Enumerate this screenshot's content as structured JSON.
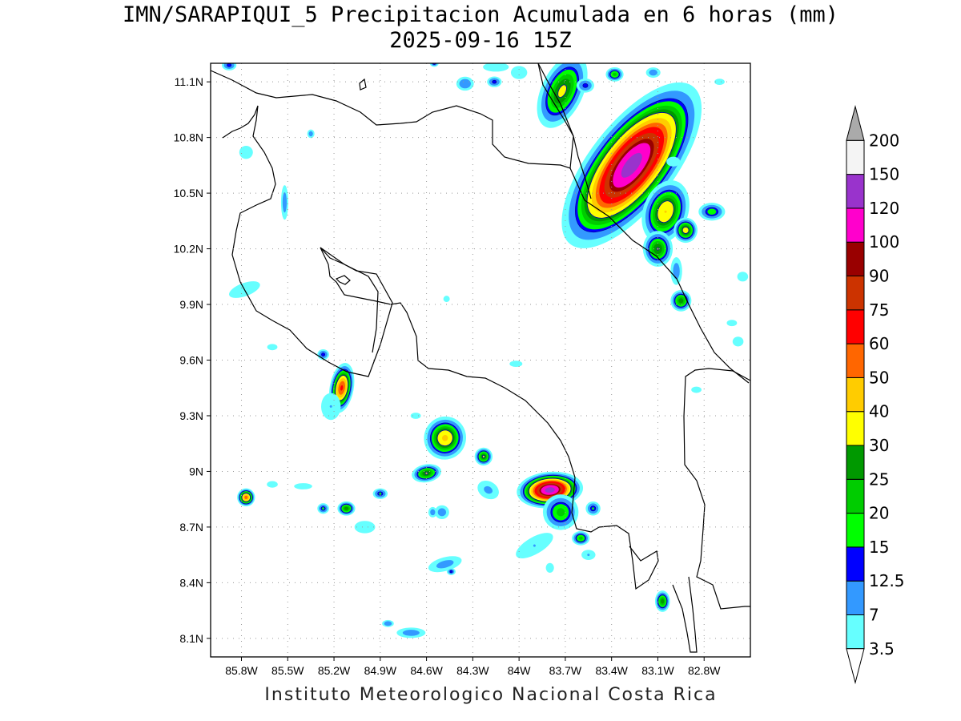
{
  "title": "IMN/SARAPIQUI_5 Precipitacion Acumulada en 6 horas (mm)",
  "subtitle": "2025-09-16 15Z",
  "credit": "Instituto Meteorologico Nacional Costa Rica",
  "chart_data": {
    "type": "heatmap",
    "title": "IMN/SARAPIQUI_5 Precipitacion Acumulada en 6 horas (mm)",
    "subtitle": "2025-09-16 15Z",
    "xlabel": "",
    "ylabel": "",
    "xlim": [
      -86.0,
      -82.5
    ],
    "ylim": [
      8.0,
      11.2
    ],
    "x_ticks": [
      -85.8,
      -85.5,
      -85.2,
      -84.9,
      -84.6,
      -84.3,
      -84.0,
      -83.7,
      -83.4,
      -83.1,
      -82.8
    ],
    "x_tick_labels": [
      "85.8W",
      "85.5W",
      "85.2W",
      "84.9W",
      "84.6W",
      "84.3W",
      "84W",
      "83.7W",
      "83.4W",
      "83.1W",
      "82.8W"
    ],
    "y_ticks": [
      8.1,
      8.4,
      8.7,
      9.0,
      9.3,
      9.6,
      9.9,
      10.2,
      10.5,
      10.8,
      11.1
    ],
    "y_tick_labels": [
      "8.1N",
      "8.4N",
      "8.7N",
      "9N",
      "9.3N",
      "9.6N",
      "9.9N",
      "10.2N",
      "10.5N",
      "10.8N",
      "11.1N"
    ],
    "grid": true,
    "colorbar": {
      "levels": [
        "3.5",
        "7",
        "12.5",
        "15",
        "20",
        "25",
        "30",
        "40",
        "50",
        "60",
        "75",
        "90",
        "100",
        "120",
        "150",
        "200"
      ],
      "colors": [
        "#66ffff",
        "#3399ff",
        "#0000ff",
        "#00ff00",
        "#00cc00",
        "#009900",
        "#ffff00",
        "#ffcc00",
        "#ff6600",
        "#ff0000",
        "#cc3300",
        "#990000",
        "#ff00cc",
        "#9933cc",
        "#f4f4f4",
        "#aaaaaa"
      ],
      "extend": "both"
    },
    "rain_cells": [
      {
        "lon": -83.27,
        "lat": 10.65,
        "sx": 0.28,
        "sy": 0.55,
        "rot": 38,
        "peak": 130
      },
      {
        "lon": -83.72,
        "lat": 11.05,
        "sx": 0.14,
        "sy": 0.22,
        "rot": 25,
        "peak": 32
      },
      {
        "lon": -83.05,
        "lat": 10.4,
        "sx": 0.15,
        "sy": 0.18,
        "rot": 20,
        "peak": 40
      },
      {
        "lon": -83.1,
        "lat": 10.2,
        "sx": 0.1,
        "sy": 0.1,
        "rot": 0,
        "peak": 30
      },
      {
        "lon": -82.92,
        "lat": 10.3,
        "sx": 0.08,
        "sy": 0.07,
        "rot": 0,
        "peak": 35
      },
      {
        "lon": -82.75,
        "lat": 10.4,
        "sx": 0.09,
        "sy": 0.05,
        "rot": 0,
        "peak": 18
      },
      {
        "lon": -82.95,
        "lat": 9.92,
        "sx": 0.07,
        "sy": 0.06,
        "rot": 0,
        "peak": 28
      },
      {
        "lon": -83.8,
        "lat": 8.9,
        "sx": 0.22,
        "sy": 0.1,
        "rot": -5,
        "peak": 130
      },
      {
        "lon": -83.73,
        "lat": 8.78,
        "sx": 0.12,
        "sy": 0.1,
        "rot": 0,
        "peak": 22
      },
      {
        "lon": -83.52,
        "lat": 8.8,
        "sx": 0.05,
        "sy": 0.04,
        "rot": 0,
        "peak": 15
      },
      {
        "lon": -83.6,
        "lat": 8.64,
        "sx": 0.06,
        "sy": 0.04,
        "rot": 0,
        "peak": 22
      },
      {
        "lon": -84.48,
        "lat": 9.18,
        "sx": 0.14,
        "sy": 0.12,
        "rot": 20,
        "peak": 42
      },
      {
        "lon": -84.6,
        "lat": 8.99,
        "sx": 0.1,
        "sy": 0.05,
        "rot": -10,
        "peak": 30
      },
      {
        "lon": -85.15,
        "lat": 9.45,
        "sx": 0.08,
        "sy": 0.14,
        "rot": 10,
        "peak": 62
      },
      {
        "lon": -85.27,
        "lat": 9.63,
        "sx": 0.04,
        "sy": 0.03,
        "rot": 0,
        "peak": 14
      },
      {
        "lon": -85.77,
        "lat": 8.86,
        "sx": 0.06,
        "sy": 0.05,
        "rot": 0,
        "peak": 55
      },
      {
        "lon": -85.12,
        "lat": 8.8,
        "sx": 0.06,
        "sy": 0.04,
        "rot": 0,
        "peak": 28
      },
      {
        "lon": -85.27,
        "lat": 8.8,
        "sx": 0.04,
        "sy": 0.03,
        "rot": 0,
        "peak": 15
      },
      {
        "lon": -83.07,
        "lat": 8.3,
        "sx": 0.05,
        "sy": 0.06,
        "rot": 0,
        "peak": 28
      },
      {
        "lon": -84.9,
        "lat": 8.88,
        "sx": 0.05,
        "sy": 0.03,
        "rot": 0,
        "peak": 15
      },
      {
        "lon": -84.23,
        "lat": 9.08,
        "sx": 0.06,
        "sy": 0.05,
        "rot": 0,
        "peak": 30
      },
      {
        "lon": -84.5,
        "lat": 8.78,
        "sx": 0.05,
        "sy": 0.04,
        "rot": 0,
        "peak": 10
      },
      {
        "lon": -84.48,
        "lat": 8.5,
        "sx": 0.12,
        "sy": 0.04,
        "rot": -15,
        "peak": 9
      },
      {
        "lon": -84.7,
        "lat": 8.13,
        "sx": 0.1,
        "sy": 0.03,
        "rot": 0,
        "peak": 10
      },
      {
        "lon": -85.77,
        "lat": 10.72,
        "sx": 0.05,
        "sy": 0.04,
        "rot": 0,
        "peak": 6
      },
      {
        "lon": -85.52,
        "lat": 10.45,
        "sx": 0.025,
        "sy": 0.1,
        "rot": 0,
        "peak": 10
      },
      {
        "lon": -85.35,
        "lat": 10.82,
        "sx": 0.025,
        "sy": 0.025,
        "rot": 0,
        "peak": 10
      },
      {
        "lon": -84.35,
        "lat": 11.09,
        "sx": 0.06,
        "sy": 0.04,
        "rot": 0,
        "peak": 12
      },
      {
        "lon": -84.15,
        "lat": 11.18,
        "sx": 0.1,
        "sy": 0.03,
        "rot": 0,
        "peak": 5
      },
      {
        "lon": -84.16,
        "lat": 11.1,
        "sx": 0.05,
        "sy": 0.03,
        "rot": 0,
        "peak": 14
      },
      {
        "lon": -85.88,
        "lat": 11.19,
        "sx": 0.05,
        "sy": 0.03,
        "rot": 0,
        "peak": 14
      },
      {
        "lon": -84.55,
        "lat": 11.2,
        "sx": 0.03,
        "sy": 0.02,
        "rot": 0,
        "peak": 14
      },
      {
        "lon": -85.78,
        "lat": 9.98,
        "sx": 0.12,
        "sy": 0.04,
        "rot": -20,
        "peak": 6
      },
      {
        "lon": -85.6,
        "lat": 9.67,
        "sx": 0.04,
        "sy": 0.02,
        "rot": 0,
        "peak": 5
      },
      {
        "lon": -85.4,
        "lat": 8.92,
        "sx": 0.07,
        "sy": 0.02,
        "rot": 0,
        "peak": 5
      },
      {
        "lon": -85.0,
        "lat": 8.7,
        "sx": 0.08,
        "sy": 0.04,
        "rot": 0,
        "peak": 5
      },
      {
        "lon": -84.2,
        "lat": 8.9,
        "sx": 0.08,
        "sy": 0.05,
        "rot": 30,
        "peak": 8
      },
      {
        "lon": -83.9,
        "lat": 8.6,
        "sx": 0.15,
        "sy": 0.05,
        "rot": -30,
        "peak": 7
      },
      {
        "lon": -83.8,
        "lat": 8.48,
        "sx": 0.03,
        "sy": 0.03,
        "rot": 0,
        "peak": 6
      },
      {
        "lon": -83.55,
        "lat": 8.55,
        "sx": 0.05,
        "sy": 0.03,
        "rot": 0,
        "peak": 7
      },
      {
        "lon": -82.58,
        "lat": 9.7,
        "sx": 0.04,
        "sy": 0.03,
        "rot": 0,
        "peak": 6
      },
      {
        "lon": -82.62,
        "lat": 9.8,
        "sx": 0.04,
        "sy": 0.02,
        "rot": 0,
        "peak": 5
      },
      {
        "lon": -82.85,
        "lat": 9.44,
        "sx": 0.04,
        "sy": 0.02,
        "rot": 0,
        "peak": 5
      },
      {
        "lon": -82.55,
        "lat": 10.05,
        "sx": 0.04,
        "sy": 0.03,
        "rot": 0,
        "peak": 6
      },
      {
        "lon": -82.98,
        "lat": 10.08,
        "sx": 0.04,
        "sy": 0.08,
        "rot": 0,
        "peak": 10
      },
      {
        "lon": -83.0,
        "lat": 10.67,
        "sx": 0.05,
        "sy": 0.03,
        "rot": 0,
        "peak": 6
      },
      {
        "lon": -82.7,
        "lat": 11.1,
        "sx": 0.04,
        "sy": 0.02,
        "rot": 0,
        "peak": 5
      },
      {
        "lon": -83.57,
        "lat": 11.08,
        "sx": 0.06,
        "sy": 0.04,
        "rot": 0,
        "peak": 14
      },
      {
        "lon": -83.38,
        "lat": 11.14,
        "sx": 0.06,
        "sy": 0.04,
        "rot": 0,
        "peak": 22
      },
      {
        "lon": -83.13,
        "lat": 11.15,
        "sx": 0.05,
        "sy": 0.03,
        "rot": 0,
        "peak": 10
      },
      {
        "lon": -84.0,
        "lat": 11.15,
        "sx": 0.06,
        "sy": 0.04,
        "rot": 0,
        "peak": 6
      },
      {
        "lon": -84.47,
        "lat": 9.93,
        "sx": 0.025,
        "sy": 0.02,
        "rot": 0,
        "peak": 5
      },
      {
        "lon": -84.02,
        "lat": 9.58,
        "sx": 0.05,
        "sy": 0.02,
        "rot": 0,
        "peak": 5
      },
      {
        "lon": -85.6,
        "lat": 8.93,
        "sx": 0.04,
        "sy": 0.02,
        "rot": 0,
        "peak": 6
      },
      {
        "lon": -84.85,
        "lat": 8.18,
        "sx": 0.04,
        "sy": 0.02,
        "rot": 0,
        "peak": 12
      },
      {
        "lon": -84.56,
        "lat": 8.78,
        "sx": 0.03,
        "sy": 0.03,
        "rot": 0,
        "peak": 10
      },
      {
        "lon": -84.44,
        "lat": 8.46,
        "sx": 0.03,
        "sy": 0.02,
        "rot": 0,
        "peak": 13
      },
      {
        "lon": -85.22,
        "lat": 9.35,
        "sx": 0.07,
        "sy": 0.08,
        "rot": 0,
        "peak": 7
      },
      {
        "lon": -84.67,
        "lat": 9.3,
        "sx": 0.04,
        "sy": 0.02,
        "rot": 0,
        "peak": 5
      }
    ]
  }
}
